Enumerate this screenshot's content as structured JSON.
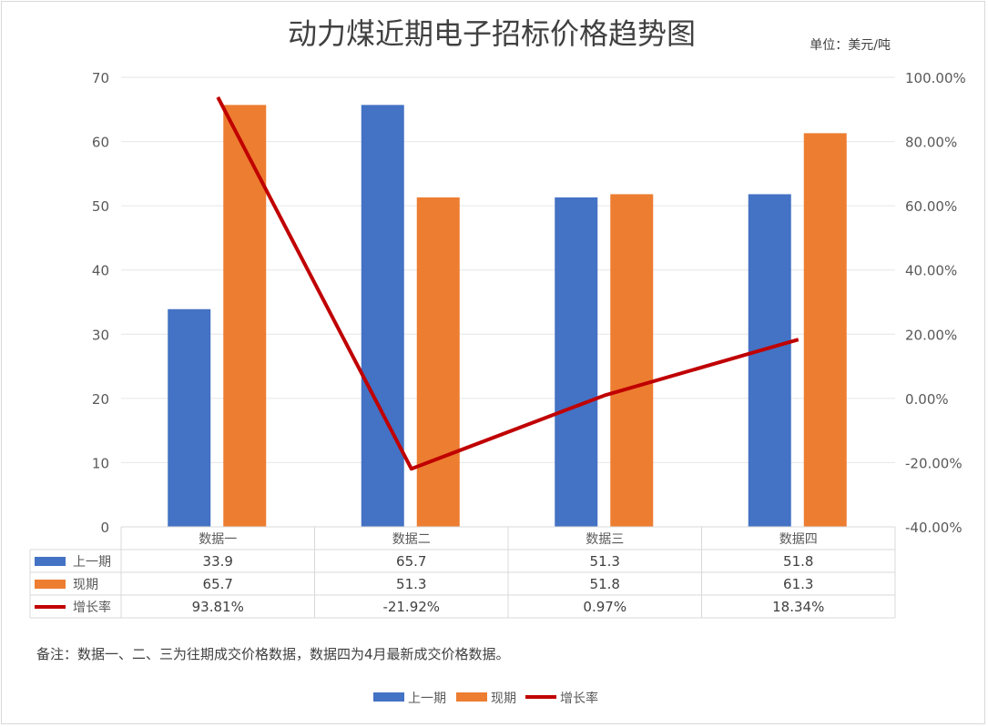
{
  "chart_data": {
    "type": "bar",
    "title": "动力煤近期电子招标价格趋势图",
    "unit_note": "单位：美元/吨",
    "categories": [
      "数据一",
      "数据二",
      "数据三",
      "数据四"
    ],
    "series": [
      {
        "name": "上一期",
        "type": "bar",
        "axis": "left",
        "color": "#4472C4",
        "values": [
          33.9,
          65.7,
          51.3,
          51.8
        ],
        "labels": [
          "33.9",
          "65.7",
          "51.3",
          "51.8"
        ]
      },
      {
        "name": "现期",
        "type": "bar",
        "axis": "left",
        "color": "#ED7D31",
        "values": [
          65.7,
          51.3,
          51.8,
          61.3
        ],
        "labels": [
          "65.7",
          "51.3",
          "51.8",
          "61.3"
        ]
      },
      {
        "name": "增长率",
        "type": "line",
        "axis": "right",
        "color": "#C00000",
        "values": [
          93.81,
          -21.92,
          0.97,
          18.34
        ],
        "labels": [
          "93.81%",
          "-21.92%",
          "0.97%",
          "18.34%"
        ]
      }
    ],
    "ylim": [
      0,
      70
    ],
    "yticks": [
      "0",
      "10",
      "20",
      "30",
      "40",
      "50",
      "60",
      "70"
    ],
    "y2lim": [
      -40,
      100
    ],
    "y2ticks": [
      "-40.00%",
      "-20.00%",
      "0.00%",
      "20.00%",
      "40.00%",
      "60.00%",
      "80.00%",
      "100.00%"
    ],
    "grid": true,
    "data_table": true,
    "legend_position": "bottom",
    "note": "备注：数据一、二、三为往期成交价格数据，数据四为4月最新成交价格数据。"
  }
}
